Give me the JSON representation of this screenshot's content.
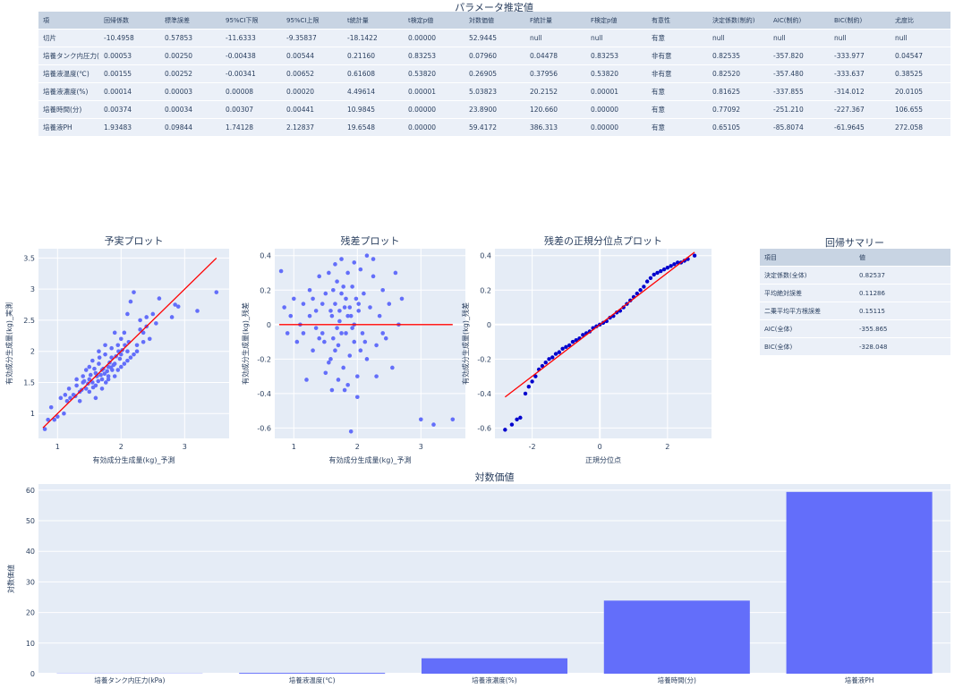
{
  "param_table": {
    "title": "パラメータ推定値",
    "headers": [
      "項",
      "回帰係数",
      "標準誤差",
      "95%CI下限",
      "95%CI上限",
      "t統計量",
      "t検定p値",
      "対数価値",
      "F統計量",
      "F検定p値",
      "有意性",
      "決定係数(制約)",
      "AIC(制約)",
      "BIC(制約)",
      "尤度比"
    ],
    "rows": [
      [
        "切片",
        "-10.4958",
        "0.57853",
        "-11.6333",
        "-9.35837",
        "-18.1422",
        "0.00000",
        "52.9445",
        "null",
        "null",
        "有意",
        "null",
        "null",
        "null",
        "null"
      ],
      [
        "培養タンク内圧力(kPa)",
        "0.00053",
        "0.00250",
        "-0.00438",
        "0.00544",
        "0.21160",
        "0.83253",
        "0.07960",
        "0.04478",
        "0.83253",
        "非有意",
        "0.82535",
        "-357.820",
        "-333.977",
        "0.04547"
      ],
      [
        "培養液温度(℃)",
        "0.00155",
        "0.00252",
        "-0.00341",
        "0.00652",
        "0.61608",
        "0.53820",
        "0.26905",
        "0.37956",
        "0.53820",
        "非有意",
        "0.82520",
        "-357.480",
        "-333.637",
        "0.38525"
      ],
      [
        "培養液濃度(%)",
        "0.00014",
        "0.00003",
        "0.00008",
        "0.00020",
        "4.49614",
        "0.00001",
        "5.03823",
        "20.2152",
        "0.00001",
        "有意",
        "0.81625",
        "-337.855",
        "-314.012",
        "20.0105"
      ],
      [
        "培養時間(分)",
        "0.00374",
        "0.00034",
        "0.00307",
        "0.00441",
        "10.9845",
        "0.00000",
        "23.8900",
        "120.660",
        "0.00000",
        "有意",
        "0.77092",
        "-251.210",
        "-227.367",
        "106.655"
      ],
      [
        "培養液PH",
        "1.93483",
        "0.09844",
        "1.74128",
        "2.12837",
        "19.6548",
        "0.00000",
        "59.4172",
        "386.313",
        "0.00000",
        "有意",
        "0.65105",
        "-85.8074",
        "-61.9645",
        "272.058"
      ]
    ]
  },
  "summary_table": {
    "title": "回帰サマリー",
    "headers": [
      "項目",
      "値"
    ],
    "rows": [
      [
        "決定係数(全体)",
        "0.82537"
      ],
      [
        "平均絶対誤差",
        "0.11286"
      ],
      [
        "二乗平均平方根誤差",
        "0.15115"
      ],
      [
        "AIC(全体)",
        "-355.865"
      ],
      [
        "BIC(全体)",
        "-328.048"
      ]
    ]
  },
  "colors": {
    "marker": "#636efa",
    "qq_marker": "#0000cd",
    "fit_line": "#ff0000",
    "bar": "#636efa",
    "plot_bg": "#e5ecf6"
  },
  "chart_data": [
    {
      "id": "pred-actual",
      "type": "scatter",
      "title": "予実プロット",
      "xlabel": "有効成分生成量(kg)_予測",
      "ylabel": "有効成分生成量(kg)_実測",
      "xlim": [
        0.7,
        3.7
      ],
      "ylim": [
        0.6,
        3.65
      ],
      "xticks": [
        1,
        2,
        3
      ],
      "yticks": [
        1,
        1.5,
        2,
        2.5,
        3,
        3.5
      ],
      "line": {
        "x": [
          0.77,
          3.5
        ],
        "y": [
          0.77,
          3.5
        ]
      },
      "points": [
        [
          3.5,
          2.95
        ],
        [
          3.2,
          2.65
        ],
        [
          2.9,
          2.72
        ],
        [
          2.85,
          2.75
        ],
        [
          2.8,
          2.55
        ],
        [
          2.55,
          2.45
        ],
        [
          2.5,
          2.6
        ],
        [
          2.4,
          2.55
        ],
        [
          2.35,
          2.3
        ],
        [
          2.45,
          2.2
        ],
        [
          2.6,
          2.85
        ],
        [
          2.2,
          2.95
        ],
        [
          2.15,
          2.8
        ],
        [
          2.3,
          2.5
        ],
        [
          2.25,
          2.1
        ],
        [
          2.1,
          2.6
        ],
        [
          2.05,
          2.3
        ],
        [
          2.0,
          2.2
        ],
        [
          2.1,
          2.0
        ],
        [
          1.95,
          2.1
        ],
        [
          1.9,
          2.3
        ],
        [
          1.85,
          2.05
        ],
        [
          2.0,
          1.95
        ],
        [
          1.9,
          1.8
        ],
        [
          1.85,
          1.9
        ],
        [
          1.8,
          1.75
        ],
        [
          1.75,
          1.95
        ],
        [
          1.7,
          1.7
        ],
        [
          1.65,
          1.8
        ],
        [
          1.6,
          1.65
        ],
        [
          1.55,
          1.5
        ],
        [
          1.5,
          1.55
        ],
        [
          1.45,
          1.4
        ],
        [
          1.4,
          1.5
        ],
        [
          1.35,
          1.35
        ],
        [
          1.3,
          1.45
        ],
        [
          1.25,
          1.3
        ],
        [
          1.2,
          1.25
        ],
        [
          1.15,
          1.2
        ],
        [
          1.1,
          1.0
        ],
        [
          1.05,
          1.25
        ],
        [
          1.0,
          0.95
        ],
        [
          0.95,
          0.9
        ],
        [
          0.9,
          1.1
        ],
        [
          0.85,
          0.9
        ],
        [
          0.8,
          0.75
        ],
        [
          1.6,
          1.25
        ],
        [
          1.7,
          1.4
        ],
        [
          1.8,
          1.55
        ],
        [
          1.9,
          1.6
        ],
        [
          2.0,
          1.75
        ],
        [
          2.1,
          1.85
        ],
        [
          2.2,
          1.95
        ],
        [
          1.55,
          1.85
        ],
        [
          1.65,
          2.0
        ],
        [
          1.75,
          2.1
        ],
        [
          1.45,
          1.7
        ],
        [
          1.35,
          1.2
        ],
        [
          1.5,
          1.35
        ],
        [
          1.6,
          1.45
        ],
        [
          1.7,
          1.55
        ],
        [
          1.8,
          1.6
        ],
        [
          1.95,
          1.7
        ],
        [
          2.05,
          1.8
        ],
        [
          2.15,
          1.9
        ],
        [
          2.25,
          2.0
        ],
        [
          2.35,
          2.15
        ],
        [
          1.3,
          1.55
        ],
        [
          1.4,
          1.6
        ],
        [
          1.5,
          1.75
        ],
        [
          1.62,
          1.6
        ],
        [
          1.72,
          1.72
        ],
        [
          1.82,
          1.82
        ],
        [
          1.92,
          1.92
        ],
        [
          2.02,
          2.02
        ],
        [
          1.58,
          1.72
        ],
        [
          1.68,
          1.62
        ],
        [
          1.78,
          1.68
        ],
        [
          1.88,
          1.78
        ],
        [
          1.98,
          1.88
        ],
        [
          1.48,
          1.48
        ],
        [
          1.38,
          1.38
        ],
        [
          1.28,
          1.28
        ],
        [
          1.18,
          1.4
        ],
        [
          1.12,
          1.3
        ],
        [
          2.3,
          2.35
        ],
        [
          2.4,
          2.4
        ],
        [
          1.66,
          1.9
        ],
        [
          1.76,
          1.5
        ],
        [
          1.86,
          1.7
        ],
        [
          1.96,
          2.0
        ],
        [
          2.06,
          2.1
        ],
        [
          2.12,
          2.15
        ],
        [
          1.52,
          1.62
        ],
        [
          1.42,
          1.52
        ],
        [
          1.56,
          1.42
        ],
        [
          1.64,
          1.52
        ],
        [
          1.74,
          1.64
        ],
        [
          1.84,
          1.74
        ]
      ]
    },
    {
      "id": "residual",
      "type": "scatter",
      "title": "残差プロット",
      "xlabel": "有効成分生成量(kg)_予測",
      "ylabel": "有効成分生成量(kg)_残差",
      "xlim": [
        0.7,
        3.7
      ],
      "ylim": [
        -0.66,
        0.44
      ],
      "xticks": [
        1,
        2,
        3
      ],
      "yticks": [
        -0.6,
        -0.4,
        -0.2,
        0,
        0.2,
        0.4
      ],
      "line": {
        "x": [
          0.77,
          3.5
        ],
        "y": [
          0,
          0
        ]
      },
      "points": [
        [
          0.8,
          0.31
        ],
        [
          0.85,
          0.1
        ],
        [
          0.9,
          -0.05
        ],
        [
          0.95,
          0.05
        ],
        [
          1.0,
          0.15
        ],
        [
          1.05,
          -0.1
        ],
        [
          1.1,
          0.0
        ],
        [
          1.15,
          0.12
        ],
        [
          1.2,
          -0.32
        ],
        [
          1.25,
          0.2
        ],
        [
          1.3,
          -0.15
        ],
        [
          1.35,
          0.08
        ],
        [
          1.4,
          0.28
        ],
        [
          1.45,
          -0.05
        ],
        [
          1.5,
          0.18
        ],
        [
          1.55,
          0.3
        ],
        [
          1.58,
          -0.2
        ],
        [
          1.6,
          0.05
        ],
        [
          1.62,
          -0.08
        ],
        [
          1.65,
          0.12
        ],
        [
          1.68,
          0.25
        ],
        [
          1.7,
          -0.12
        ],
        [
          1.72,
          0.02
        ],
        [
          1.75,
          0.18
        ],
        [
          1.78,
          -0.25
        ],
        [
          1.8,
          0.1
        ],
        [
          1.82,
          -0.05
        ],
        [
          1.85,
          0.3
        ],
        [
          1.88,
          -0.18
        ],
        [
          1.9,
          0.05
        ],
        [
          1.92,
          0.22
        ],
        [
          1.95,
          -0.1
        ],
        [
          1.98,
          0.15
        ],
        [
          2.0,
          -0.3
        ],
        [
          2.02,
          0.08
        ],
        [
          2.05,
          0.32
        ],
        [
          2.08,
          -0.05
        ],
        [
          2.1,
          0.18
        ],
        [
          2.15,
          -0.2
        ],
        [
          2.2,
          0.1
        ],
        [
          2.25,
          0.28
        ],
        [
          2.3,
          -0.12
        ],
        [
          2.35,
          0.05
        ],
        [
          2.4,
          0.2
        ],
        [
          2.45,
          -0.08
        ],
        [
          2.5,
          0.12
        ],
        [
          2.55,
          -0.25
        ],
        [
          2.6,
          0.3
        ],
        [
          2.65,
          0.0
        ],
        [
          2.7,
          0.15
        ],
        [
          1.65,
          0.35
        ],
        [
          1.75,
          0.38
        ],
        [
          1.85,
          -0.35
        ],
        [
          1.95,
          0.36
        ],
        [
          2.15,
          0.4
        ],
        [
          2.25,
          0.38
        ],
        [
          1.5,
          -0.28
        ],
        [
          1.6,
          -0.38
        ],
        [
          1.7,
          -0.32
        ],
        [
          1.8,
          -0.38
        ],
        [
          2.0,
          -0.42
        ],
        [
          1.55,
          -0.22
        ],
        [
          1.65,
          -0.15
        ],
        [
          1.75,
          -0.05
        ],
        [
          1.85,
          0.05
        ],
        [
          1.95,
          0.0
        ],
        [
          2.05,
          -0.15
        ],
        [
          1.45,
          0.12
        ],
        [
          1.35,
          -0.02
        ],
        [
          1.25,
          0.05
        ],
        [
          1.4,
          -0.08
        ],
        [
          1.62,
          0.2
        ],
        [
          1.72,
          0.08
        ],
        [
          1.82,
          0.15
        ],
        [
          1.92,
          -0.02
        ],
        [
          2.02,
          0.12
        ],
        [
          2.12,
          -0.1
        ],
        [
          1.78,
          0.22
        ],
        [
          1.88,
          0.1
        ],
        [
          1.68,
          -0.02
        ],
        [
          1.58,
          0.08
        ],
        [
          1.48,
          -0.1
        ],
        [
          1.9,
          -0.62
        ],
        [
          3.0,
          -0.55
        ],
        [
          3.2,
          -0.58
        ],
        [
          3.5,
          -0.55
        ],
        [
          2.3,
          -0.3
        ],
        [
          2.4,
          -0.05
        ],
        [
          1.3,
          0.15
        ],
        [
          1.15,
          -0.05
        ]
      ]
    },
    {
      "id": "qq",
      "type": "scatter",
      "title": "残差の正規分位点プロット",
      "xlabel": "正規分位点",
      "ylabel": "有効成分生成量(kg)_残差",
      "xlim": [
        -3.1,
        3.3
      ],
      "ylim": [
        -0.66,
        0.44
      ],
      "xticks": [
        -2,
        0,
        2
      ],
      "yticks": [
        -0.6,
        -0.4,
        -0.2,
        0,
        0.2,
        0.4
      ],
      "line": {
        "x": [
          -2.8,
          2.8
        ],
        "y": [
          -0.42,
          0.42
        ]
      },
      "points": [
        [
          -2.8,
          -0.61
        ],
        [
          -2.6,
          -0.58
        ],
        [
          -2.45,
          -0.55
        ],
        [
          -2.35,
          -0.54
        ],
        [
          -2.2,
          -0.4
        ],
        [
          -2.1,
          -0.36
        ],
        [
          -2.0,
          -0.33
        ],
        [
          -1.9,
          -0.3
        ],
        [
          -1.8,
          -0.26
        ],
        [
          -1.7,
          -0.24
        ],
        [
          -1.6,
          -0.22
        ],
        [
          -1.5,
          -0.2
        ],
        [
          -1.4,
          -0.19
        ],
        [
          -1.3,
          -0.17
        ],
        [
          -1.2,
          -0.16
        ],
        [
          -1.1,
          -0.14
        ],
        [
          -1.0,
          -0.13
        ],
        [
          -0.9,
          -0.12
        ],
        [
          -0.8,
          -0.1
        ],
        [
          -0.7,
          -0.09
        ],
        [
          -0.6,
          -0.08
        ],
        [
          -0.5,
          -0.06
        ],
        [
          -0.4,
          -0.05
        ],
        [
          -0.3,
          -0.04
        ],
        [
          -0.2,
          -0.02
        ],
        [
          -0.1,
          -0.01
        ],
        [
          0.0,
          0.0
        ],
        [
          0.1,
          0.01
        ],
        [
          0.2,
          0.02
        ],
        [
          0.3,
          0.04
        ],
        [
          0.4,
          0.05
        ],
        [
          0.5,
          0.07
        ],
        [
          0.6,
          0.08
        ],
        [
          0.7,
          0.1
        ],
        [
          0.8,
          0.12
        ],
        [
          0.9,
          0.14
        ],
        [
          1.0,
          0.16
        ],
        [
          1.1,
          0.18
        ],
        [
          1.2,
          0.2
        ],
        [
          1.3,
          0.22
        ],
        [
          1.4,
          0.25
        ],
        [
          1.5,
          0.27
        ],
        [
          1.6,
          0.29
        ],
        [
          1.7,
          0.3
        ],
        [
          1.8,
          0.31
        ],
        [
          1.9,
          0.32
        ],
        [
          2.0,
          0.33
        ],
        [
          2.1,
          0.34
        ],
        [
          2.2,
          0.35
        ],
        [
          2.3,
          0.36
        ],
        [
          2.4,
          0.36
        ],
        [
          2.5,
          0.37
        ],
        [
          2.6,
          0.38
        ],
        [
          2.8,
          0.4
        ]
      ]
    },
    {
      "id": "log-value",
      "type": "bar",
      "title": "対数価値",
      "xlabel": "",
      "ylabel": "対数価値",
      "ylim": [
        0,
        62
      ],
      "yticks": [
        0,
        10,
        20,
        30,
        40,
        50,
        60
      ],
      "categories": [
        "培養タンク内圧力(kPa)",
        "培養液温度(℃)",
        "培養液濃度(%)",
        "培養時間(分)",
        "培養液PH"
      ],
      "values": [
        0.0796,
        0.26905,
        5.03823,
        23.89,
        59.4172
      ]
    }
  ]
}
